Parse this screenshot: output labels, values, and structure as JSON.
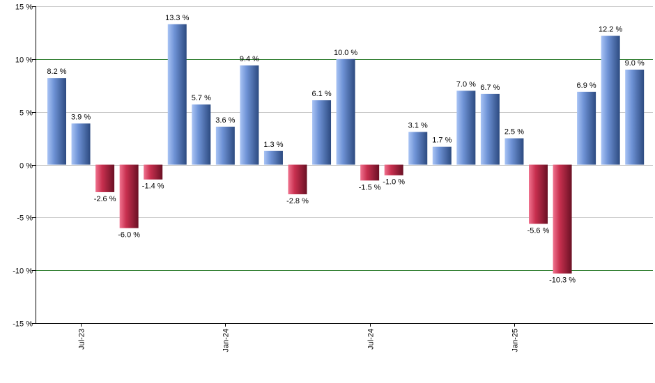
{
  "chart_data": {
    "type": "bar",
    "ylim": [
      -15,
      15
    ],
    "ytick_values": [
      -15,
      -10,
      -5,
      0,
      5,
      10,
      15
    ],
    "ytick_labels": [
      "-15 %",
      "-10 %",
      "-5 %",
      "0 %",
      "5 %",
      "10 %",
      "15 %"
    ],
    "xtick_labels": [
      {
        "label": "Jul-23",
        "index": 1
      },
      {
        "label": "Jan-24",
        "index": 7
      },
      {
        "label": "Jul-24",
        "index": 13
      },
      {
        "label": "Jan-25",
        "index": 19
      }
    ],
    "values": [
      8.2,
      3.9,
      -2.6,
      -6.0,
      -1.4,
      13.3,
      5.7,
      3.6,
      9.4,
      1.3,
      -2.8,
      6.1,
      10.0,
      -1.5,
      -1.0,
      3.1,
      1.7,
      7.0,
      6.7,
      2.5,
      -5.6,
      -10.3,
      6.9,
      12.2,
      9.0
    ],
    "value_labels": [
      "8.2 %",
      "3.9 %",
      "-2.6 %",
      "-6.0 %",
      "-1.4 %",
      "13.3 %",
      "5.7 %",
      "3.6 %",
      "9.4 %",
      "1.3 %",
      "-2.8 %",
      "6.1 %",
      "10.0 %",
      "-1.5 %",
      "-1.0 %",
      "3.1 %",
      "1.7 %",
      "7.0 %",
      "6.7 %",
      "2.5 %",
      "-5.6 %",
      "-10.3 %",
      "6.9 %",
      "12.2 %",
      "9.0 %"
    ],
    "highlight_gridlines": [
      10,
      -10
    ],
    "grid": true,
    "colors": {
      "positive_light": "#a9c4f5",
      "positive_mid": "#6f93d6",
      "positive_dark": "#2c4a80",
      "negative_light": "#f0738f",
      "negative_mid": "#c8304f",
      "negative_dark": "#6a1024",
      "grid": "#c8c8c8",
      "highlight_grid": "#2e7d2e",
      "axis": "#000000"
    }
  }
}
